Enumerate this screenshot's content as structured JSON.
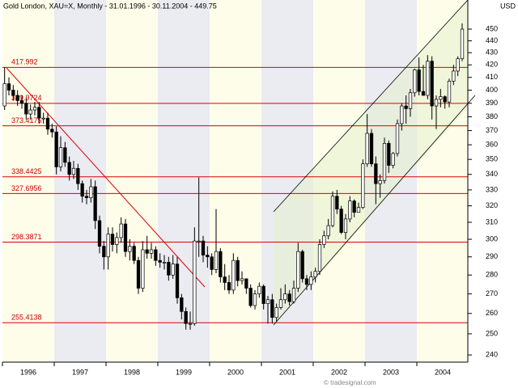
{
  "chart_data": {
    "type": "candlestick",
    "title": "Gold London, XAU=X, Monthly - 31.01.1996 - 30.11.2004 - 449.75",
    "y_axis_label": "USD",
    "watermark": "© tradesignal.com",
    "log_scale": true,
    "ylim": [
      236.7,
      476
    ],
    "yticks": [
      240,
      250,
      260,
      270,
      280,
      290,
      300,
      310,
      320,
      330,
      340,
      350,
      360,
      370,
      380,
      390,
      400,
      410,
      420,
      430,
      440,
      450
    ],
    "x_labels": [
      "1996",
      "1997",
      "1998",
      "1999",
      "2000",
      "2001",
      "2002",
      "2003",
      "2004"
    ],
    "levels": [
      417.992,
      389.9724,
      373.4175,
      338.4425,
      327.6956,
      298.3871,
      255.4138
    ],
    "level_color": "#dd0000",
    "band_colors": [
      "#fdfdea",
      "#ebebf2"
    ],
    "up_color": "#ffffff",
    "down_color": "#000000",
    "open": [
      388,
      405,
      400,
      396,
      392,
      390,
      382,
      385,
      387,
      379,
      379,
      371,
      369,
      345,
      358,
      348,
      340,
      344,
      334,
      326,
      325,
      332,
      311,
      296,
      290,
      303,
      297,
      301,
      309,
      293,
      296,
      288,
      273,
      294,
      292,
      294,
      288,
      287,
      287,
      280,
      286,
      268,
      261,
      255,
      255,
      299,
      299,
      291,
      290,
      283,
      293,
      279,
      276,
      272,
      288,
      277,
      278,
      273,
      264,
      270,
      274,
      265,
      267,
      258,
      263,
      267,
      270,
      266,
      273,
      293,
      278,
      275,
      279,
      282,
      297,
      302,
      308,
      326,
      318,
      304,
      312,
      323,
      316,
      319,
      347,
      368,
      347,
      334,
      336,
      361,
      346,
      354,
      375,
      388,
      386,
      398,
      416,
      399,
      396,
      423,
      388,
      393,
      395,
      391,
      407,
      415,
      425
    ],
    "high": [
      418,
      410,
      404,
      400,
      396,
      394,
      389,
      391,
      391,
      383,
      383,
      375,
      373,
      366,
      362,
      352,
      349,
      347,
      336,
      330,
      337,
      336,
      314,
      299,
      307,
      307,
      304,
      313,
      312,
      300,
      298,
      290,
      299,
      302,
      298,
      296,
      292,
      291,
      290,
      291,
      290,
      270,
      263,
      261,
      307,
      338,
      302,
      296,
      292,
      318,
      295,
      286,
      280,
      292,
      290,
      282,
      278,
      275,
      272,
      276,
      275,
      269,
      270,
      265,
      273,
      275,
      272,
      277,
      298,
      294,
      280,
      282,
      284,
      300,
      305,
      312,
      329,
      330,
      320,
      315,
      326,
      324,
      322,
      350,
      382,
      371,
      352,
      340,
      365,
      363,
      355,
      378,
      390,
      396,
      401,
      417,
      426,
      420,
      428,
      427,
      396,
      401,
      396,
      409,
      420,
      427,
      455
    ],
    "low": [
      385,
      396,
      392,
      388,
      386,
      378,
      378,
      381,
      375,
      375,
      367,
      365,
      340,
      342,
      345,
      336,
      337,
      330,
      322,
      321,
      322,
      306,
      292,
      283,
      283,
      293,
      292,
      298,
      290,
      288,
      286,
      270,
      271,
      289,
      289,
      285,
      284,
      283,
      277,
      278,
      265,
      257,
      252,
      252,
      254,
      290,
      287,
      284,
      280,
      281,
      276,
      272,
      270,
      270,
      274,
      275,
      270,
      263,
      262,
      268,
      262,
      255,
      255,
      256,
      262,
      265,
      264,
      265,
      271,
      276,
      272,
      272,
      276,
      280,
      295,
      300,
      307,
      315,
      303,
      300,
      310,
      313,
      316,
      318,
      345,
      345,
      321,
      325,
      334,
      341,
      344,
      352,
      370,
      375,
      380,
      395,
      396,
      396,
      393,
      378,
      371,
      387,
      386,
      387,
      404,
      411,
      423
    ],
    "close": [
      405,
      400,
      396,
      392,
      390,
      382,
      385,
      387,
      379,
      379,
      371,
      369,
      345,
      358,
      348,
      340,
      344,
      334,
      326,
      325,
      332,
      311,
      296,
      290,
      303,
      297,
      301,
      309,
      293,
      296,
      288,
      273,
      294,
      292,
      294,
      288,
      287,
      287,
      280,
      286,
      268,
      261,
      255,
      255,
      299,
      299,
      291,
      290,
      283,
      293,
      279,
      276,
      272,
      288,
      277,
      278,
      273,
      264,
      270,
      274,
      265,
      267,
      258,
      263,
      267,
      270,
      266,
      273,
      293,
      278,
      275,
      279,
      282,
      297,
      302,
      308,
      326,
      318,
      304,
      312,
      323,
      316,
      319,
      347,
      368,
      347,
      334,
      336,
      361,
      346,
      354,
      375,
      388,
      386,
      398,
      416,
      399,
      396,
      423,
      388,
      393,
      395,
      391,
      407,
      415,
      425,
      450
    ]
  }
}
